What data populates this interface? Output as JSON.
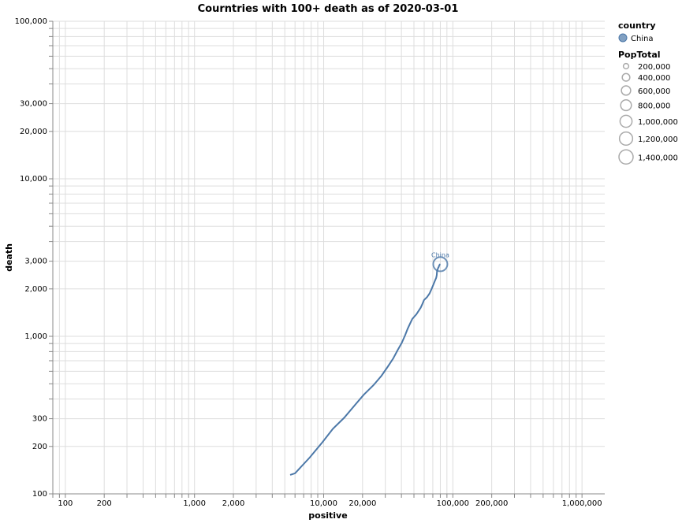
{
  "chart_data": {
    "type": "line",
    "title": "Courntries with 100+ death as of 2020-03-01",
    "xlabel": "positive",
    "ylabel": "death",
    "xscale": "log",
    "yscale": "log",
    "xlim": [
      80,
      1500000
    ],
    "ylim": [
      100,
      100000
    ],
    "grid": true,
    "x_ticks": [
      {
        "value": 100,
        "label": "100"
      },
      {
        "value": 200,
        "label": "200"
      },
      {
        "value": 1000,
        "label": "1,000"
      },
      {
        "value": 2000,
        "label": "2,000"
      },
      {
        "value": 10000,
        "label": "10,000"
      },
      {
        "value": 20000,
        "label": "20,000"
      },
      {
        "value": 100000,
        "label": "100,000"
      },
      {
        "value": 200000,
        "label": "200,000"
      },
      {
        "value": 1000000,
        "label": "1,000,000"
      }
    ],
    "y_ticks": [
      {
        "value": 100,
        "label": "100"
      },
      {
        "value": 200,
        "label": "200"
      },
      {
        "value": 300,
        "label": "300"
      },
      {
        "value": 1000,
        "label": "1,000"
      },
      {
        "value": 2000,
        "label": "2,000"
      },
      {
        "value": 3000,
        "label": "3,000"
      },
      {
        "value": 10000,
        "label": "10,000"
      },
      {
        "value": 20000,
        "label": "20,000"
      },
      {
        "value": 30000,
        "label": "30,000"
      },
      {
        "value": 100000,
        "label": "100,000"
      }
    ],
    "series": [
      {
        "name": "China",
        "color": "#4c78a8",
        "x": [
          5500,
          6000,
          7800,
          9800,
          11800,
          14400,
          17200,
          20400,
          24300,
          28000,
          31200,
          34500,
          37200,
          40200,
          42700,
          44600,
          46500,
          48500,
          52200,
          56400,
          58000,
          59800,
          63000,
          66000,
          68500,
          70500,
          72400,
          74300,
          75000,
          75500,
          76300,
          77000,
          77800,
          78200,
          78700,
          79400,
          80000
        ],
        "y": [
          132,
          135,
          170,
          213,
          259,
          304,
          361,
          425,
          490,
          562,
          638,
          722,
          812,
          908,
          1016,
          1113,
          1200,
          1290,
          1380,
          1520,
          1600,
          1700,
          1770,
          1870,
          2000,
          2120,
          2240,
          2350,
          2440,
          2590,
          2660,
          2720,
          2760,
          2800,
          2830,
          2860,
          2870
        ]
      }
    ],
    "point_label": {
      "series": "China",
      "text": "China",
      "x": 80000,
      "y": 2870,
      "pop_total": 1400000
    },
    "legend": {
      "position": "right",
      "color_title": "country",
      "color_items": [
        {
          "label": "China",
          "color": "#4c78a8"
        }
      ],
      "size_title": "PopTotal",
      "size_items": [
        {
          "value": 200000,
          "label": "200,000"
        },
        {
          "value": 400000,
          "label": "400,000"
        },
        {
          "value": 600000,
          "label": "600,000"
        },
        {
          "value": 800000,
          "label": "800,000"
        },
        {
          "value": 1000000,
          "label": "1,000,000"
        },
        {
          "value": 1200000,
          "label": "1,200,000"
        },
        {
          "value": 1400000,
          "label": "1,400,000"
        }
      ]
    }
  }
}
